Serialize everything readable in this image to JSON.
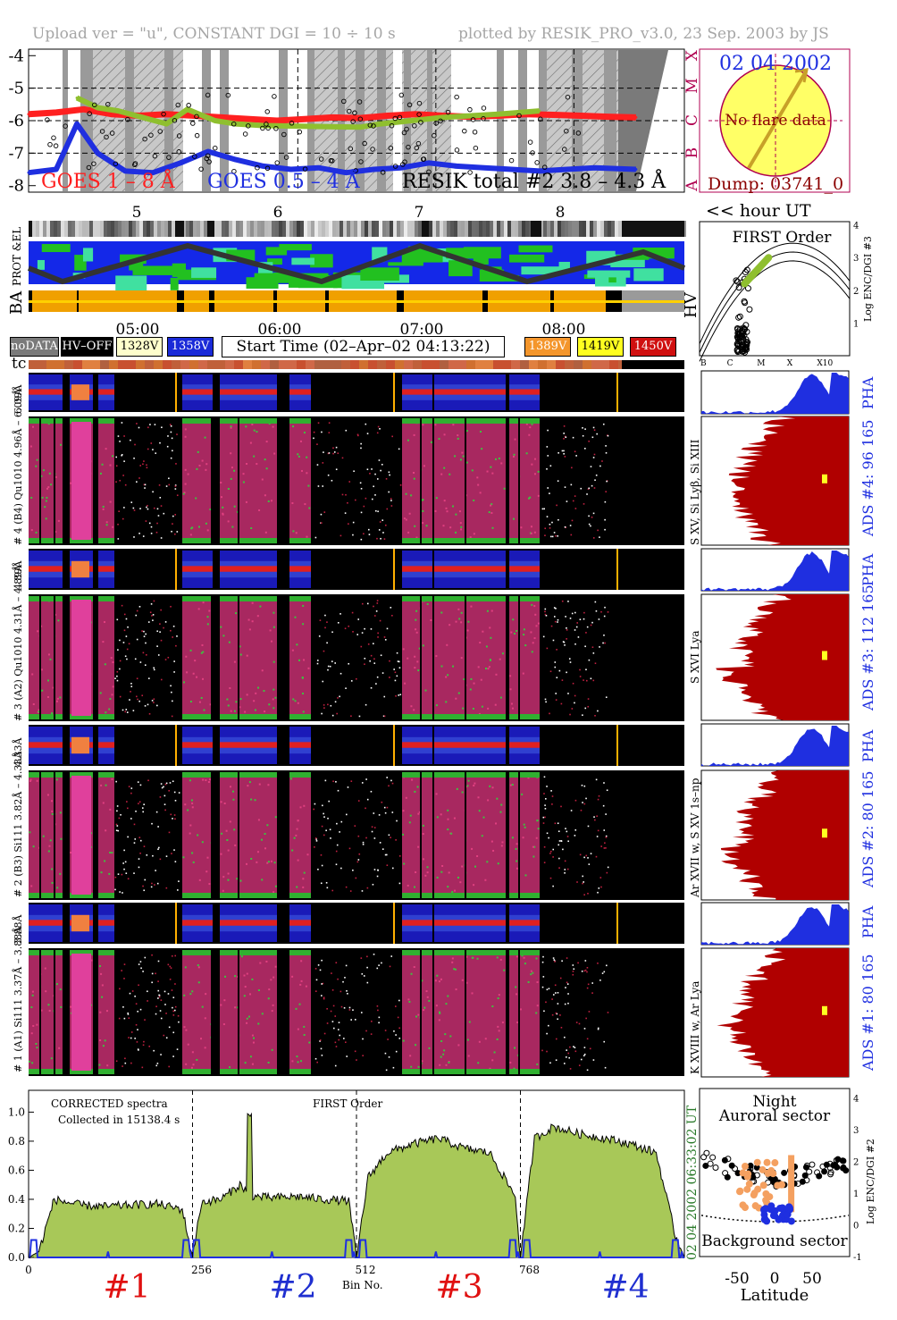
{
  "header": {
    "left": "Upload ver = \"u\", CONSTANT  DGI =  10 ÷  10 s",
    "right": "plotted by RESIK_PRO_v3.0, 23 Sep. 2003 by JS"
  },
  "goes_panel": {
    "yticks": [
      "-4",
      "-5",
      "-6",
      "-7",
      "-8"
    ],
    "classes": [
      "X",
      "M",
      "C",
      "B",
      "A"
    ],
    "hour_ticks": [
      "5",
      "6",
      "7",
      "8"
    ],
    "legend": {
      "goes_long": "GOES 1 – 8 Å",
      "goes_short": "GOES 0.5 – 4 Å",
      "resik": "RESIK total #2  3.8 – 4.3 Å"
    },
    "colors": {
      "goes_long": "#ff2020",
      "goes_short": "#1f2fe0",
      "resik": "#8fbf2f"
    }
  },
  "flare_panel": {
    "date": "02 04 2002",
    "message": "No flare data",
    "dump": "Dump: 03741_0"
  },
  "hour_label": "<< hour UT",
  "aux_rows": {
    "prot_el": "PROT &EL",
    "ba": "BA",
    "hv": "HV"
  },
  "first_order_panel": {
    "title": "FIRST Order",
    "ylabel": "Log ENC/DGI #3",
    "yticks": [
      "1",
      "2",
      "3",
      "4"
    ],
    "xticks": [
      "B",
      "C",
      "M",
      "X",
      "X10"
    ]
  },
  "time_axis": [
    "05:00",
    "06:00",
    "07:00",
    "08:00"
  ],
  "status_legend": {
    "nodata": "noDATA",
    "hvoff": "HV–OFF",
    "v1328": "1328V",
    "v1358": "1358V",
    "v1389": "1389V",
    "v1419": "1419V",
    "v1450": "1450V",
    "start_time": "Start Time (02–Apr–02 04:13:22)"
  },
  "tc_label": "tc",
  "spectro_labels": {
    "pha4": "6.09Å",
    "ch4": "# 4 (B4) Qu1010 4.96Å – 6.09Å",
    "pha3": "4.89Å",
    "ch3": "# 3 (A2) Qu1010 4.31Å – 4.89Å",
    "pha2": "4.33Å",
    "ch2": "# 2 (B3) Si111 3.82Å – 4.33Å",
    "pha1": "3.88Å",
    "ch1": "# 1 (A1) Si111 3.37Å – 3.88Å"
  },
  "ads_labels": {
    "pha4": "PHA",
    "ads4": "ADS #4:   96 165",
    "lines4": "S XV, Si Lyβ, Si XIII",
    "pha3": "PHA",
    "ads3": "ADS #3:   112 165",
    "lines3": "S XVI Lya",
    "pha2": "PHA",
    "ads2": "ADS #2:   80 165",
    "lines2": "Ar XVII w, S XV 1s–np",
    "pha1": "PHA",
    "ads1": "ADS #1:   80 165",
    "lines1": "K XVIII w, Ar Lya"
  },
  "spectrum_panel": {
    "note1": "CORRECTED spectra",
    "note2": "Collected in 15138.4 s",
    "title": "FIRST Order",
    "yticks": [
      "0.0",
      "0.2",
      "0.4",
      "0.6",
      "0.8",
      "1.0"
    ],
    "xticks": [
      "0",
      "256",
      "512",
      "768"
    ],
    "xlabel": "Bin No.",
    "time_stamp": "02 04 2002     06:33:02 UT",
    "channels": [
      "#1",
      "#2",
      "#3",
      "#4"
    ],
    "channel_colors": [
      "#e01010",
      "#1f2fd0",
      "#e01010",
      "#1f2fd0"
    ]
  },
  "latitude_panel": {
    "title1": "Night",
    "title2": "Auroral sector",
    "bottom": "Background sector",
    "xlabel": "Latitude",
    "xticks": [
      "-50",
      "0",
      "50"
    ],
    "yticks": [
      "-1",
      "0",
      "1",
      "2",
      "3",
      "4"
    ],
    "ylabel": "Log ENC/DGI #2"
  },
  "chart_data": [
    {
      "type": "line",
      "title": "",
      "ylabel": "",
      "ylim": [
        -8.2,
        -3.8
      ],
      "x_unit": "hour UT",
      "series": [
        {
          "name": "GOES 1 – 8 Å",
          "x": [
            4.2,
            4.4,
            4.6,
            4.8,
            5.0,
            5.2,
            5.4,
            5.6,
            5.8,
            6.0,
            6.2,
            6.4,
            6.6,
            6.8,
            7.0,
            7.2,
            7.4,
            7.6,
            7.8,
            8.0,
            8.2,
            8.4,
            8.6
          ],
          "values": [
            -5.8,
            -5.75,
            -5.65,
            -5.8,
            -5.85,
            -5.8,
            -5.85,
            -5.9,
            -5.95,
            -6.0,
            -5.95,
            -5.9,
            -5.92,
            -5.85,
            -5.8,
            -5.85,
            -5.88,
            -5.85,
            -5.8,
            -5.82,
            -5.85,
            -5.88,
            -5.9
          ]
        },
        {
          "name": "GOES 0.5 – 4 Å",
          "x": [
            4.2,
            4.4,
            4.55,
            4.7,
            4.9,
            5.1,
            5.3,
            5.5,
            5.7,
            5.9,
            6.1,
            6.3,
            6.5,
            6.7,
            6.9,
            7.1,
            7.3,
            7.5,
            7.7,
            7.9,
            8.1,
            8.3,
            8.6
          ],
          "values": [
            -7.6,
            -7.5,
            -6.1,
            -7.0,
            -7.55,
            -7.6,
            -7.3,
            -6.95,
            -7.2,
            -7.4,
            -7.5,
            -7.45,
            -7.6,
            -7.5,
            -7.45,
            -7.3,
            -7.4,
            -7.45,
            -7.5,
            -7.55,
            -7.5,
            -7.45,
            -7.5
          ]
        },
        {
          "name": "RESIK total #2  3.8 – 4.3 Å",
          "x": [
            4.55,
            4.7,
            4.85,
            5.2,
            5.35,
            5.55,
            5.7,
            5.9,
            6.6,
            6.75,
            7.2,
            7.6,
            7.9
          ],
          "values": [
            -5.3,
            -5.6,
            -5.7,
            -6.1,
            -5.65,
            -6.0,
            -6.1,
            -6.15,
            -6.2,
            -6.1,
            -5.9,
            -5.8,
            -5.7
          ]
        }
      ]
    },
    {
      "type": "area",
      "title": "FIRST Order",
      "xlabel": "Bin No.",
      "xlim": [
        0,
        1024
      ],
      "ylim": [
        0,
        1.15
      ],
      "x": [
        0,
        16,
        40,
        80,
        120,
        160,
        200,
        240,
        256,
        270,
        300,
        330,
        350,
        380,
        420,
        460,
        500,
        512,
        530,
        560,
        600,
        640,
        680,
        720,
        760,
        768,
        790,
        820,
        860,
        900,
        940,
        980,
        1010,
        1024
      ],
      "values": [
        0,
        0.04,
        0.4,
        0.36,
        0.35,
        0.36,
        0.37,
        0.33,
        0,
        0.38,
        0.4,
        0.5,
        0.42,
        0.41,
        0.42,
        0.4,
        0.39,
        0,
        0.55,
        0.72,
        0.78,
        0.82,
        0.75,
        0.72,
        0.42,
        0,
        0.82,
        0.9,
        0.85,
        0.82,
        0.78,
        0.72,
        0.15,
        0
      ]
    }
  ]
}
